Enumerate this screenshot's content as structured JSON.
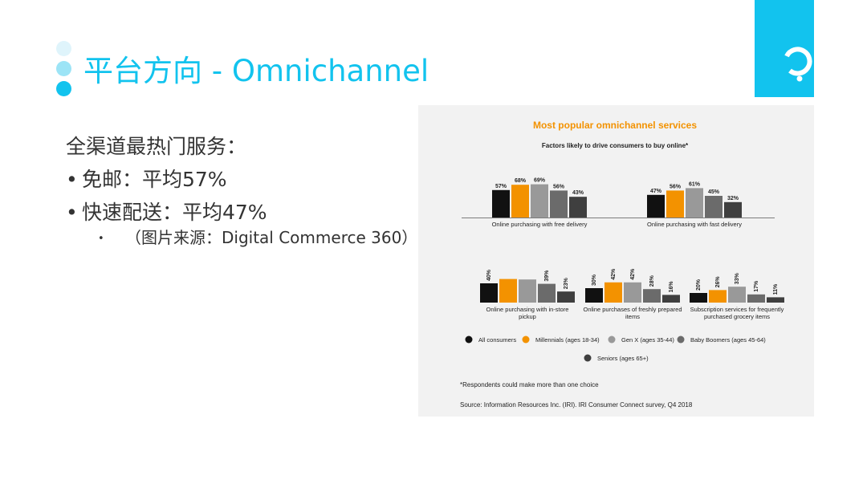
{
  "slide": {
    "title": "平台方向 - Omnichannel",
    "accent": "#12c3ee",
    "logo_icon": "brand-logo-icon"
  },
  "body": {
    "line1": "全渠道最热门服务：",
    "bullet1": "免邮：平均57%",
    "bullet2": "快速配送：平均47%",
    "sub_bullet": "（图片来源：Digital Commerce 360）"
  },
  "chart_data": {
    "type": "bar",
    "title": "Most popular omnichannel services",
    "subtitle": "Factors likely to drive consumers to buy online*",
    "categories": [
      [
        "Online purchasing with free delivery"
      ],
      [
        "Online purchasing with fast delivery"
      ],
      [
        "Online purchasing with in-store",
        "pickup"
      ],
      [
        "Online purchases of freshly prepared",
        "items"
      ],
      [
        "Subscription services for frequently",
        "purchased grocery items"
      ]
    ],
    "series": [
      {
        "name": "All consumers",
        "color": "#111111",
        "values": [
          57,
          47,
          40,
          30,
          20
        ]
      },
      {
        "name": "Millennials (ages 18-34)",
        "color": "#f39200",
        "values": [
          68,
          56,
          null,
          42,
          26
        ]
      },
      {
        "name": "Gen X (ages 35-44)",
        "color": "#999999",
        "values": [
          69,
          61,
          null,
          42,
          33
        ]
      },
      {
        "name": "Baby Boomers (ages 45-64)",
        "color": "#6b6b6b",
        "values": [
          56,
          45,
          39,
          28,
          17
        ]
      },
      {
        "name": "Seniors (ages 65+)",
        "color": "#3f3f3f",
        "values": [
          43,
          32,
          23,
          16,
          11
        ]
      }
    ],
    "shown_labels": [
      [
        "57%",
        "68%",
        "69%",
        "56%",
        "43%"
      ],
      [
        "47%",
        "56%",
        "61%",
        "45%",
        "32%"
      ],
      [
        "40%",
        "",
        "",
        "39%",
        "23%"
      ],
      [
        "30%",
        "42%",
        "42%",
        "28%",
        "16%"
      ],
      [
        "20%",
        "26%",
        "33%",
        "17%",
        "11%"
      ]
    ],
    "footnote": "*Respondents could make more than one choice",
    "source": "Source: Information Resources Inc. (IRI). IRI Consumer Connect survey, Q4 2018"
  }
}
